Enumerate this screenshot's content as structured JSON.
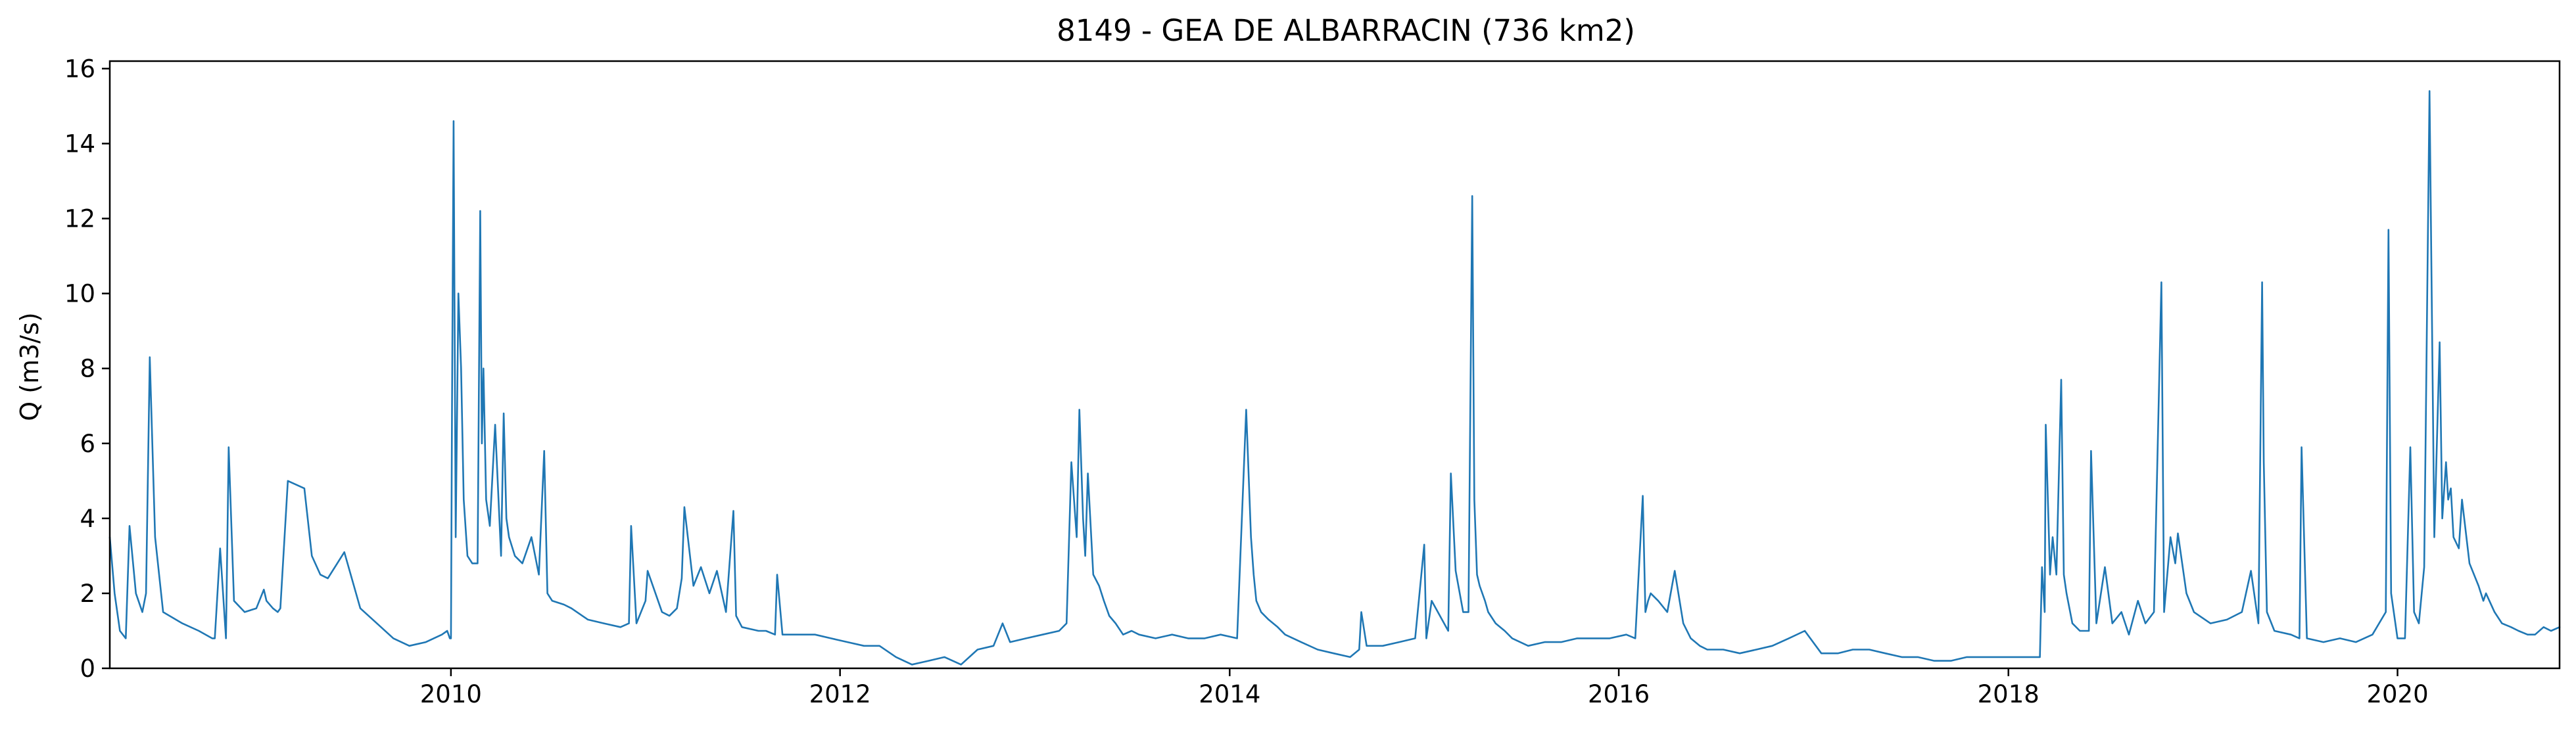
{
  "chart_data": {
    "type": "line",
    "title": "8149 - GEA DE ALBARRACIN (736 km2)",
    "xlabel": "",
    "ylabel": "Q (m3/s)",
    "xlim": [
      "2008-04-01",
      "2020-10-31"
    ],
    "ylim": [
      0,
      16.2
    ],
    "x_ticks": [
      "2010",
      "2012",
      "2014",
      "2016",
      "2018",
      "2020"
    ],
    "y_ticks": [
      "0",
      "2",
      "4",
      "6",
      "8",
      "10",
      "12",
      "14",
      "16"
    ],
    "grid": false,
    "colors": {
      "line": "#1f77b4",
      "axis": "#000000",
      "background": "#ffffff"
    },
    "series": [
      {
        "x": [
          "2008-04-01",
          "2008-04-10",
          "2008-04-20",
          "2008-05-01",
          "2008-05-08",
          "2008-05-20",
          "2008-06-01",
          "2008-06-08",
          "2008-06-15",
          "2008-06-25",
          "2008-07-10",
          "2008-08-15",
          "2008-09-15",
          "2008-10-10",
          "2008-10-15",
          "2008-10-25",
          "2008-11-05",
          "2008-11-10",
          "2008-11-20",
          "2008-12-10",
          "2009-01-01",
          "2009-01-15",
          "2009-01-20",
          "2009-02-01",
          "2009-02-10",
          "2009-02-15",
          "2009-03-01",
          "2009-04-01",
          "2009-04-15",
          "2009-05-01",
          "2009-05-15",
          "2009-06-15",
          "2009-07-15",
          "2009-08-15",
          "2009-09-15",
          "2009-10-15",
          "2009-11-15",
          "2009-12-15",
          "2009-12-25",
          "2009-12-30",
          "2010-01-01",
          "2010-01-03",
          "2010-01-06",
          "2010-01-10",
          "2010-01-15",
          "2010-01-20",
          "2010-01-25",
          "2010-02-01",
          "2010-02-10",
          "2010-02-20",
          "2010-02-25",
          "2010-02-28",
          "2010-03-03",
          "2010-03-08",
          "2010-03-15",
          "2010-03-25",
          "2010-04-05",
          "2010-04-10",
          "2010-04-15",
          "2010-04-20",
          "2010-05-01",
          "2010-05-15",
          "2010-06-01",
          "2010-06-15",
          "2010-06-25",
          "2010-07-01",
          "2010-07-10",
          "2010-08-01",
          "2010-08-15",
          "2010-09-15",
          "2010-10-15",
          "2010-11-15",
          "2010-12-01",
          "2010-12-05",
          "2010-12-15",
          "2011-01-01",
          "2011-01-05",
          "2011-02-01",
          "2011-02-15",
          "2011-03-01",
          "2011-03-10",
          "2011-03-15",
          "2011-04-01",
          "2011-04-15",
          "2011-05-01",
          "2011-05-15",
          "2011-06-01",
          "2011-06-15",
          "2011-06-20",
          "2011-07-01",
          "2011-08-01",
          "2011-08-15",
          "2011-09-01",
          "2011-09-05",
          "2011-09-15",
          "2011-10-15",
          "2011-11-15",
          "2011-12-15",
          "2012-01-15",
          "2012-02-15",
          "2012-03-15",
          "2012-04-15",
          "2012-05-15",
          "2012-06-15",
          "2012-07-15",
          "2012-08-15",
          "2012-09-15",
          "2012-10-15",
          "2012-11-01",
          "2012-11-15",
          "2012-12-15",
          "2013-01-15",
          "2013-02-15",
          "2013-03-01",
          "2013-03-10",
          "2013-03-20",
          "2013-03-25",
          "2013-04-01",
          "2013-04-05",
          "2013-04-10",
          "2013-04-20",
          "2013-05-01",
          "2013-05-10",
          "2013-05-20",
          "2013-06-01",
          "2013-06-15",
          "2013-07-01",
          "2013-07-15",
          "2013-08-15",
          "2013-09-15",
          "2013-10-15",
          "2013-11-15",
          "2013-12-15",
          "2014-01-15",
          "2014-02-01",
          "2014-02-10",
          "2014-02-15",
          "2014-02-20",
          "2014-03-01",
          "2014-03-15",
          "2014-04-01",
          "2014-04-15",
          "2014-05-15",
          "2014-06-15",
          "2014-07-15",
          "2014-08-15",
          "2014-09-01",
          "2014-09-05",
          "2014-09-15",
          "2014-10-15",
          "2014-11-15",
          "2014-12-15",
          "2015-01-01",
          "2015-01-05",
          "2015-01-15",
          "2015-02-15",
          "2015-02-20",
          "2015-03-01",
          "2015-03-15",
          "2015-03-25",
          "2015-04-01",
          "2015-04-05",
          "2015-04-10",
          "2015-04-15",
          "2015-04-25",
          "2015-05-01",
          "2015-05-15",
          "2015-06-01",
          "2015-06-15",
          "2015-07-15",
          "2015-08-15",
          "2015-09-15",
          "2015-10-15",
          "2015-11-15",
          "2015-12-15",
          "2016-01-15",
          "2016-02-01",
          "2016-02-15",
          "2016-02-20",
          "2016-02-25",
          "2016-03-01",
          "2016-03-15",
          "2016-04-01",
          "2016-04-15",
          "2016-05-01",
          "2016-05-15",
          "2016-06-01",
          "2016-06-15",
          "2016-07-15",
          "2016-08-15",
          "2016-09-15",
          "2016-10-15",
          "2016-11-15",
          "2016-12-15",
          "2017-01-15",
          "2017-02-15",
          "2017-03-15",
          "2017-04-15",
          "2017-05-15",
          "2017-06-15",
          "2017-07-15",
          "2017-08-15",
          "2017-09-15",
          "2017-10-15",
          "2017-11-15",
          "2017-12-15",
          "2018-01-15",
          "2018-02-15",
          "2018-03-01",
          "2018-03-05",
          "2018-03-10",
          "2018-03-12",
          "2018-03-20",
          "2018-03-25",
          "2018-04-01",
          "2018-04-10",
          "2018-04-15",
          "2018-04-20",
          "2018-05-01",
          "2018-05-15",
          "2018-06-01",
          "2018-06-05",
          "2018-06-15",
          "2018-07-01",
          "2018-07-15",
          "2018-08-01",
          "2018-08-15",
          "2018-09-01",
          "2018-09-15",
          "2018-10-01",
          "2018-10-15",
          "2018-10-20",
          "2018-11-01",
          "2018-11-10",
          "2018-11-15",
          "2018-12-01",
          "2018-12-15",
          "2019-01-15",
          "2019-02-15",
          "2019-03-15",
          "2019-04-01",
          "2019-04-15",
          "2019-04-22",
          "2019-04-25",
          "2019-05-01",
          "2019-05-15",
          "2019-06-15",
          "2019-07-01",
          "2019-07-05",
          "2019-07-15",
          "2019-08-15",
          "2019-09-15",
          "2019-10-15",
          "2019-11-15",
          "2019-12-10",
          "2019-12-15",
          "2019-12-20",
          "2020-01-01",
          "2020-01-15",
          "2020-01-25",
          "2020-02-01",
          "2020-02-10",
          "2020-02-20",
          "2020-03-01",
          "2020-03-10",
          "2020-03-20",
          "2020-03-25",
          "2020-04-01",
          "2020-04-05",
          "2020-04-10",
          "2020-04-15",
          "2020-04-25",
          "2020-05-01",
          "2020-05-15",
          "2020-06-01",
          "2020-06-10",
          "2020-06-15",
          "2020-07-01",
          "2020-07-15",
          "2020-08-01",
          "2020-08-15",
          "2020-09-01",
          "2020-09-15",
          "2020-10-01",
          "2020-10-15",
          "2020-10-31"
        ],
        "y": [
          3.5,
          2.0,
          1.0,
          0.8,
          3.8,
          2.0,
          1.5,
          2.0,
          8.3,
          3.5,
          1.5,
          1.2,
          1.0,
          0.8,
          0.8,
          3.2,
          0.8,
          5.9,
          1.8,
          1.5,
          1.6,
          2.1,
          1.8,
          1.6,
          1.5,
          1.6,
          5.0,
          4.8,
          3.0,
          2.5,
          2.4,
          3.1,
          1.6,
          1.2,
          0.8,
          0.6,
          0.7,
          0.9,
          1.0,
          0.8,
          0.8,
          7.0,
          14.6,
          3.5,
          10.0,
          8.0,
          4.5,
          3.0,
          2.8,
          2.8,
          12.2,
          6.0,
          8.0,
          4.5,
          3.8,
          6.5,
          3.0,
          6.8,
          4.0,
          3.5,
          3.0,
          2.8,
          3.5,
          2.5,
          5.8,
          2.0,
          1.8,
          1.7,
          1.6,
          1.3,
          1.2,
          1.1,
          1.2,
          3.8,
          1.2,
          1.8,
          2.6,
          1.5,
          1.4,
          1.6,
          2.4,
          4.3,
          2.2,
          2.7,
          2.0,
          2.6,
          1.5,
          4.2,
          1.4,
          1.1,
          1.0,
          1.0,
          0.9,
          2.5,
          0.9,
          0.9,
          0.9,
          0.8,
          0.7,
          0.6,
          0.6,
          0.3,
          0.1,
          0.2,
          0.3,
          0.1,
          0.5,
          0.6,
          1.2,
          0.7,
          0.8,
          0.9,
          1.0,
          1.2,
          5.5,
          3.5,
          6.9,
          4.0,
          3.0,
          5.2,
          2.5,
          2.2,
          1.8,
          1.4,
          1.2,
          0.9,
          1.0,
          0.9,
          0.8,
          0.9,
          0.8,
          0.8,
          0.9,
          0.8,
          6.9,
          3.5,
          2.5,
          1.8,
          1.5,
          1.3,
          1.1,
          0.9,
          0.7,
          0.5,
          0.4,
          0.3,
          0.5,
          1.5,
          0.6,
          0.6,
          0.7,
          0.8,
          3.3,
          0.8,
          1.8,
          1.0,
          5.2,
          2.6,
          1.5,
          1.5,
          12.6,
          4.5,
          2.5,
          2.2,
          1.8,
          1.5,
          1.2,
          1.0,
          0.8,
          0.6,
          0.7,
          0.7,
          0.8,
          0.8,
          0.8,
          0.9,
          0.8,
          4.6,
          1.5,
          1.8,
          2.0,
          1.8,
          1.5,
          2.6,
          1.2,
          0.8,
          0.6,
          0.5,
          0.5,
          0.4,
          0.5,
          0.6,
          0.8,
          1.0,
          0.4,
          0.4,
          0.5,
          0.5,
          0.4,
          0.3,
          0.3,
          0.2,
          0.2,
          0.3,
          0.3,
          0.3,
          0.3,
          0.3,
          0.3,
          2.7,
          1.5,
          6.5,
          2.5,
          3.5,
          2.5,
          7.7,
          2.5,
          2.0,
          1.2,
          1.0,
          1.0,
          5.8,
          1.2,
          2.7,
          1.2,
          1.5,
          0.9,
          1.8,
          1.2,
          1.5,
          10.3,
          1.5,
          3.5,
          2.8,
          3.6,
          2.0,
          1.5,
          1.2,
          1.3,
          1.5,
          2.6,
          1.2,
          10.3,
          5.5,
          1.5,
          1.0,
          0.9,
          0.8,
          5.9,
          0.8,
          0.7,
          0.8,
          0.7,
          0.9,
          1.5,
          11.7,
          2.0,
          0.8,
          0.8,
          5.9,
          1.5,
          1.2,
          2.7,
          15.4,
          3.5,
          8.7,
          4.0,
          5.5,
          4.5,
          4.8,
          3.5,
          3.2,
          4.5,
          2.8,
          2.2,
          1.8,
          2.0,
          1.5,
          1.2,
          1.1,
          1.0,
          0.9,
          0.9,
          1.1,
          1.0,
          1.1
        ]
      }
    ]
  }
}
